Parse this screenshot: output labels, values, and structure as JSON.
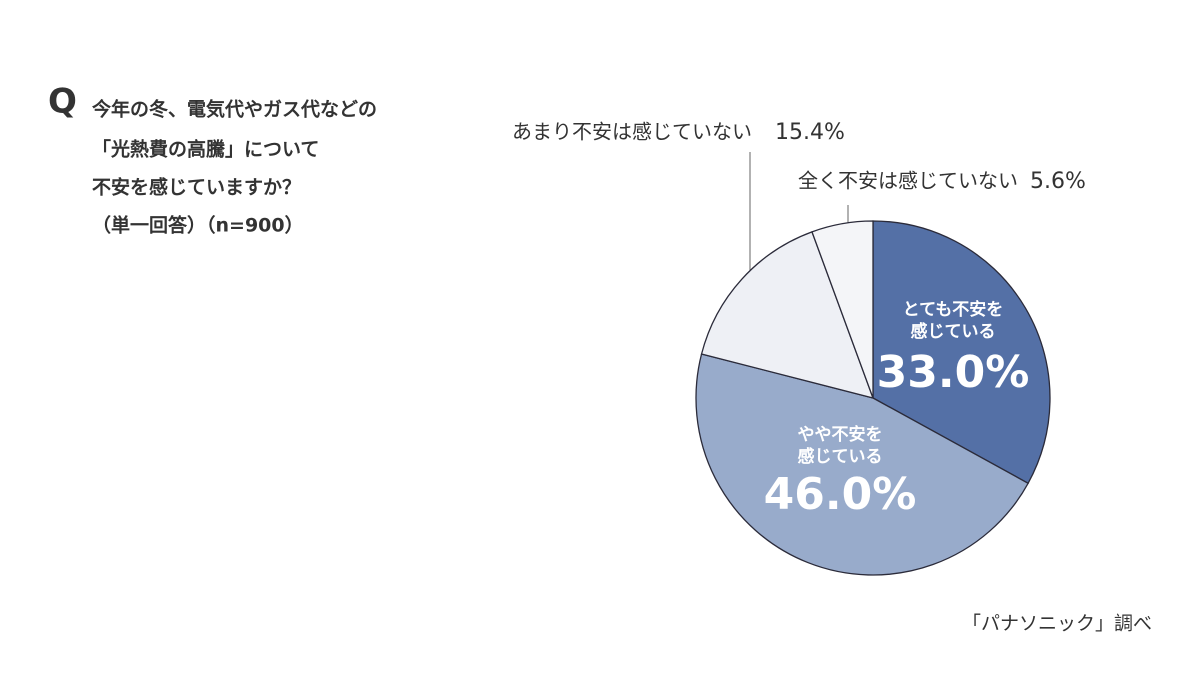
{
  "chart_data": {
    "type": "pie",
    "question_marker": "Q",
    "title": [
      "今年の冬、電気代やガス代などの",
      "「光熱費の高騰」について",
      "不安を感じていますか？",
      "（単一回答）（n=900）"
    ],
    "categories": [
      [
        "とても不安を",
        "感じている"
      ],
      [
        "やや不安を",
        "感じている"
      ],
      [
        "あまり不安は感じていない"
      ],
      [
        "全く不安は感じていない"
      ]
    ],
    "values": [
      33.0,
      46.0,
      15.4,
      5.6
    ],
    "value_labels": [
      "33.0%",
      "46.0%",
      "15.4%",
      "5.6%"
    ],
    "colors": [
      "#5470a6",
      "#98abcb",
      "#eef0f5",
      "#f4f5f8"
    ],
    "source": "「パナソニック」調べ"
  }
}
